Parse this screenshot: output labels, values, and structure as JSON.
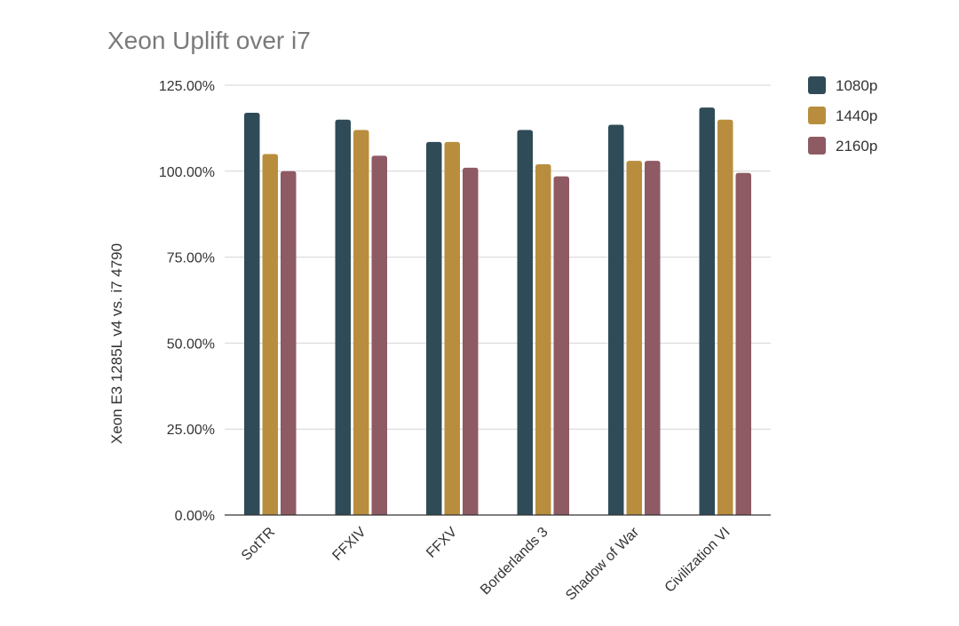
{
  "chart_data": {
    "type": "bar",
    "title": "Xeon Uplift over i7",
    "ylabel": "Xeon E3 1285L v4 vs. i7 4790",
    "xlabel": "",
    "categories": [
      "SotTR",
      "FFXIV",
      "FFXV",
      "Borderlands 3",
      "Shadow of War",
      "Civilization VI"
    ],
    "series": [
      {
        "name": "1080p",
        "color": "#2f4b57",
        "values": [
          117,
          115,
          108.5,
          112,
          113.5,
          118.5
        ]
      },
      {
        "name": "1440p",
        "color": "#b88e3e",
        "values": [
          105,
          112,
          108.5,
          102,
          103,
          115
        ]
      },
      {
        "name": "2160p",
        "color": "#8e5a63",
        "values": [
          100,
          104.5,
          101,
          98.5,
          103,
          99.5
        ]
      }
    ],
    "ylim": [
      0,
      125
    ],
    "yticks": [
      0,
      25,
      50,
      75,
      100,
      125
    ],
    "ytick_labels": [
      "0.00%",
      "25.00%",
      "50.00%",
      "75.00%",
      "100.00%",
      "125.00%"
    ],
    "grid": true,
    "legend_position": "right"
  }
}
